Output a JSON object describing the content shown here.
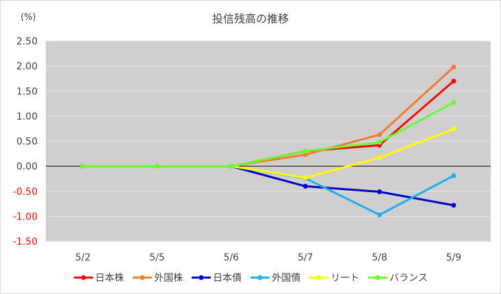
{
  "chart_data": {
    "type": "line",
    "title": "投信残高の推移",
    "unit_label": "(%)",
    "categories": [
      "5/2",
      "5/5",
      "5/6",
      "5/7",
      "5/8",
      "5/9"
    ],
    "ylim": [
      -1.5,
      2.5
    ],
    "yticks": [
      "2.50",
      "2.00",
      "1.50",
      "1.00",
      "0.50",
      "0.00",
      "-0.50",
      "-1.00",
      "-1.50"
    ],
    "ytick_values": [
      2.5,
      2.0,
      1.5,
      1.0,
      0.5,
      0.0,
      -0.5,
      -1.0,
      -1.5
    ],
    "negative_tick_color": "#ff0000",
    "positive_tick_color": "#404040",
    "plot_background": "#d0cece",
    "grid": true,
    "legend_position": "bottom",
    "series": [
      {
        "name": "日本株",
        "color": "#ff0000",
        "values": [
          0,
          0,
          0,
          0.3,
          0.42,
          1.7
        ]
      },
      {
        "name": "外国株",
        "color": "#ed7d31",
        "values": [
          0,
          0,
          0,
          0.23,
          0.63,
          1.98
        ]
      },
      {
        "name": "日本債",
        "color": "#0000cc",
        "values": [
          0,
          0,
          0,
          -0.4,
          -0.51,
          -0.78
        ]
      },
      {
        "name": "外国債",
        "color": "#1ab0e8",
        "values": [
          0,
          0,
          0,
          -0.24,
          -0.97,
          -0.19
        ]
      },
      {
        "name": "リート",
        "color": "#ffff00",
        "values": [
          0,
          0,
          0,
          -0.23,
          0.17,
          0.74
        ]
      },
      {
        "name": "バランス",
        "color": "#66ff33",
        "values": [
          0,
          0,
          0,
          0.3,
          0.48,
          1.27
        ]
      }
    ]
  }
}
